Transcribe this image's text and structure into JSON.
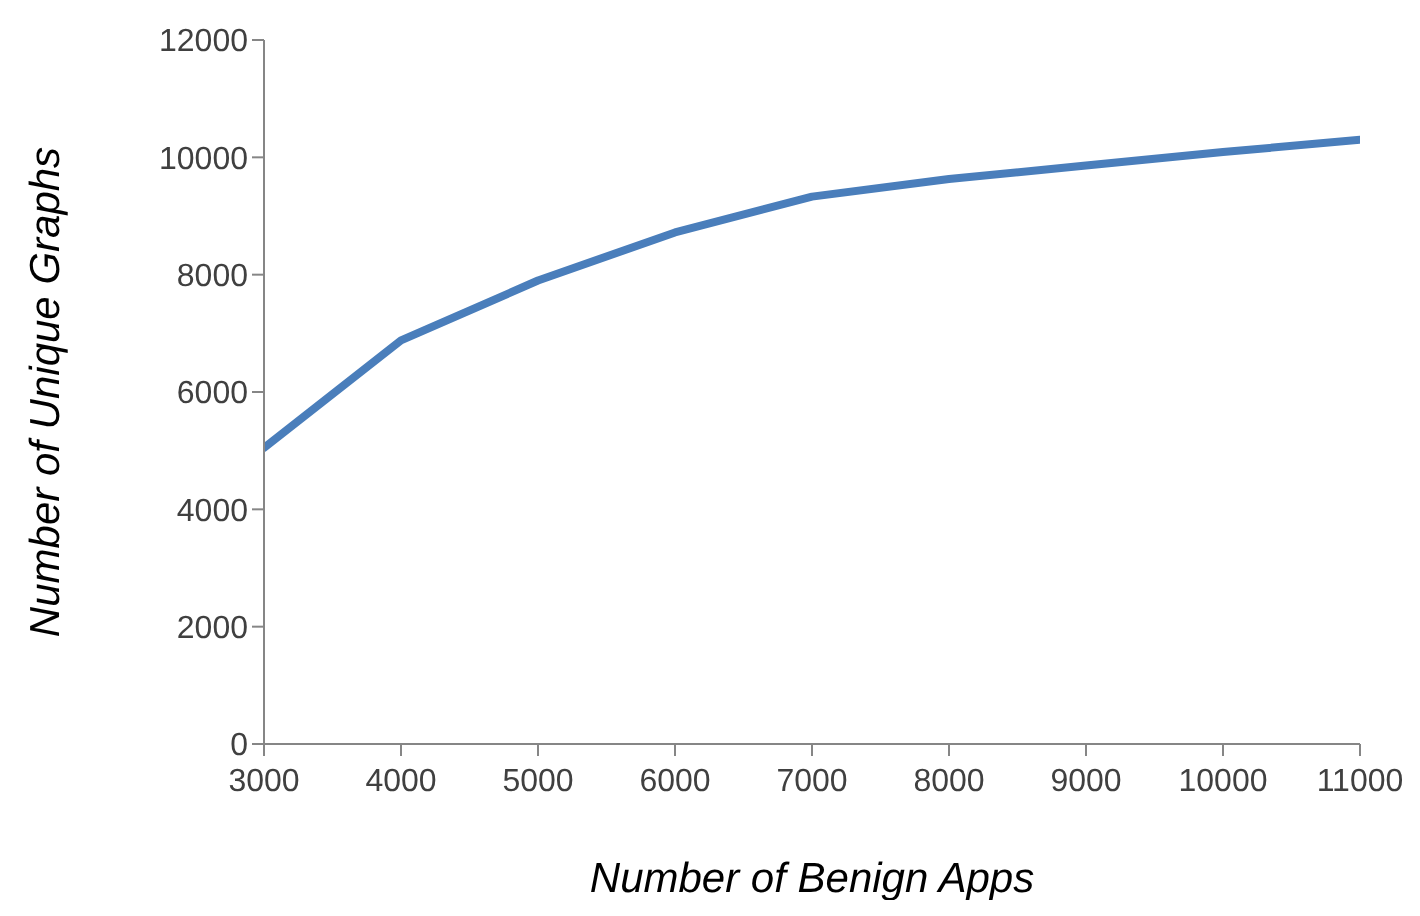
{
  "chart_data": {
    "type": "line",
    "xlabel": "Number of Benign Apps",
    "ylabel": "Number of Unique Graphs",
    "x": [
      3000,
      4000,
      5000,
      6000,
      7000,
      8000,
      9000,
      10000,
      11000
    ],
    "series": [
      {
        "color": "#4a7ebb",
        "values": [
          5050,
          6880,
          7900,
          8720,
          9330,
          9630,
          9860,
          10090,
          10300
        ]
      }
    ],
    "xlim": [
      3000,
      11000
    ],
    "xticks": [
      3000,
      4000,
      5000,
      6000,
      7000,
      8000,
      9000,
      10000,
      11000
    ],
    "ylim": [
      0,
      12000
    ],
    "yticks": [
      0,
      2000,
      4000,
      6000,
      8000,
      10000,
      12000
    ],
    "grid": false,
    "legend": false,
    "marker": "none",
    "line_style": "solid"
  }
}
